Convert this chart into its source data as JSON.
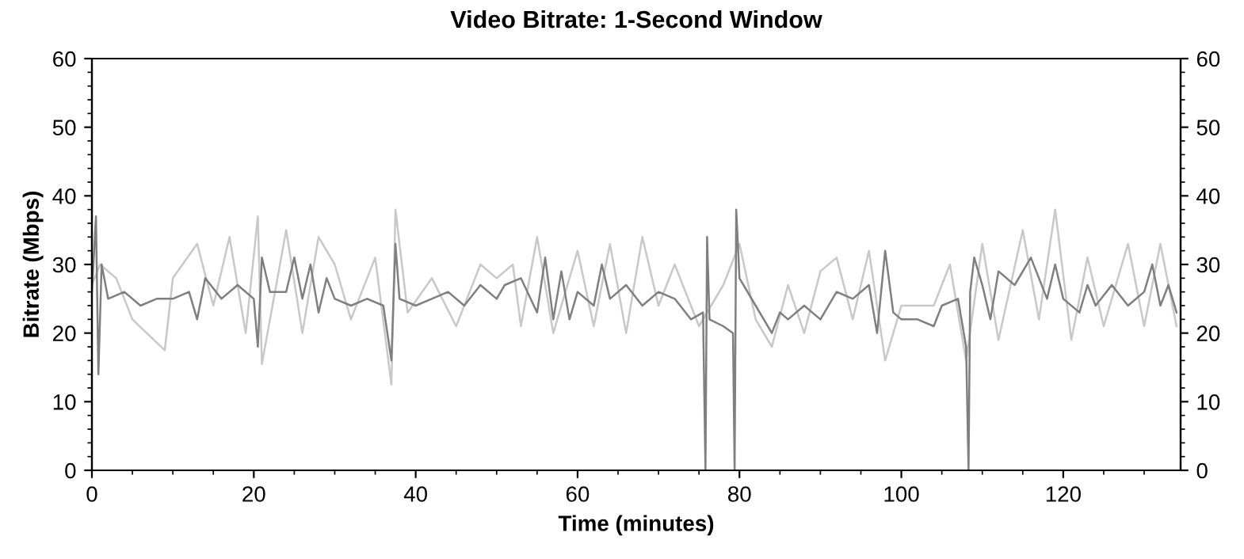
{
  "chart_data": {
    "type": "line",
    "title": "Video Bitrate: 1-Second Window",
    "xlabel": "Time (minutes)",
    "ylabel": "Bitrate (Mbps)",
    "xlim": [
      0,
      134.5
    ],
    "xticks": [
      0,
      20,
      40,
      60,
      80,
      100,
      120
    ],
    "ylim": [
      0,
      60
    ],
    "yticks": [
      0,
      10,
      20,
      30,
      40,
      50,
      60
    ],
    "y2lim": [
      0,
      60
    ],
    "y2ticks": [
      0,
      10,
      20,
      30,
      40,
      50,
      60
    ],
    "grid": false,
    "marker": "none",
    "line_style": "solid",
    "series": [
      {
        "color": "#c8c8c8",
        "x": [
          0,
          1,
          3,
          5,
          9,
          10,
          13,
          15,
          17,
          19,
          20.5,
          21,
          24,
          26,
          28,
          30,
          32,
          35,
          37,
          37.5,
          39,
          42,
          45,
          48,
          50,
          52,
          53,
          55,
          57,
          60,
          62,
          64,
          66,
          68,
          70,
          72,
          75,
          78,
          80,
          82,
          84,
          86,
          88,
          90,
          92,
          94,
          96,
          98,
          100,
          104,
          106,
          108,
          110,
          112,
          115,
          117,
          119,
          121,
          123,
          125,
          128,
          130,
          132,
          134
        ],
        "values": [
          27,
          30,
          28,
          22,
          17.5,
          28,
          33,
          24,
          34,
          20,
          37,
          15.5,
          35,
          20,
          34,
          30,
          22,
          31,
          12.5,
          38,
          23,
          28,
          21,
          30,
          28,
          30,
          21,
          34,
          20,
          32,
          21,
          33,
          20,
          34,
          24,
          30,
          21,
          27,
          33,
          22,
          18,
          27,
          20,
          29,
          31,
          22,
          32,
          16,
          24,
          24,
          30,
          16,
          33,
          19,
          35,
          22,
          38,
          19,
          31,
          21,
          33,
          21,
          33,
          21
        ]
      },
      {
        "color": "#7f7f7f",
        "x": [
          0,
          0.5,
          0.8,
          1.2,
          2,
          4,
          6,
          8,
          10,
          12,
          13,
          14,
          16,
          18,
          20,
          20.5,
          21,
          22,
          24,
          25,
          26,
          27,
          28,
          29,
          30,
          32,
          34,
          36,
          37,
          37.5,
          38,
          40,
          42,
          44,
          46,
          48,
          50,
          51,
          53,
          55,
          56,
          57,
          58,
          59,
          60,
          62,
          63,
          64,
          66,
          68,
          70,
          72,
          74,
          75.5,
          75.8,
          76,
          76.3,
          78,
          79.2,
          79.4,
          79.6,
          80,
          82,
          84,
          85,
          86,
          88,
          90,
          92,
          94,
          96,
          97,
          98,
          99,
          100,
          102,
          104,
          105,
          107,
          108,
          108.3,
          108.5,
          109,
          110,
          111,
          112,
          114,
          116,
          118,
          119,
          120,
          122,
          123,
          124,
          126,
          128,
          130,
          131,
          132,
          133,
          134
        ],
        "values": [
          26,
          37,
          14,
          30,
          25,
          26,
          24,
          25,
          25,
          26,
          22,
          28,
          25,
          27,
          25,
          18,
          31,
          26,
          26,
          31,
          25,
          30,
          23,
          28,
          25,
          24,
          25,
          24,
          16,
          33,
          25,
          24,
          25,
          26,
          24,
          27,
          25,
          27,
          28,
          23,
          31,
          22,
          29,
          22,
          26,
          24,
          30,
          25,
          27,
          24,
          26,
          25,
          22,
          23,
          0,
          34,
          22,
          21,
          20,
          0,
          38,
          28,
          24,
          20,
          23,
          22,
          24,
          22,
          26,
          25,
          27,
          20,
          32,
          23,
          22,
          22,
          21,
          24,
          25,
          18,
          0,
          26,
          31,
          27,
          22,
          29,
          27,
          31,
          25,
          30,
          25,
          23,
          27,
          24,
          27,
          24,
          26,
          30,
          24,
          27,
          23
        ]
      }
    ]
  }
}
